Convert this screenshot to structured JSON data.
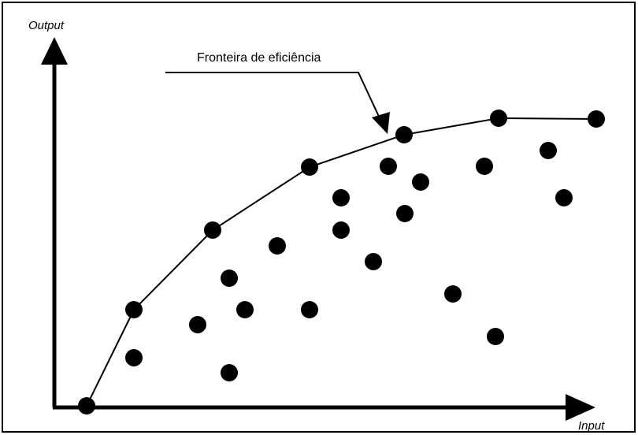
{
  "diagram": {
    "y_axis_label": "Output",
    "x_axis_label": "Input",
    "frontier_label": "Fronteira de eficiência"
  },
  "colors": {
    "ink": "#000000",
    "background": "#ffffff"
  }
}
